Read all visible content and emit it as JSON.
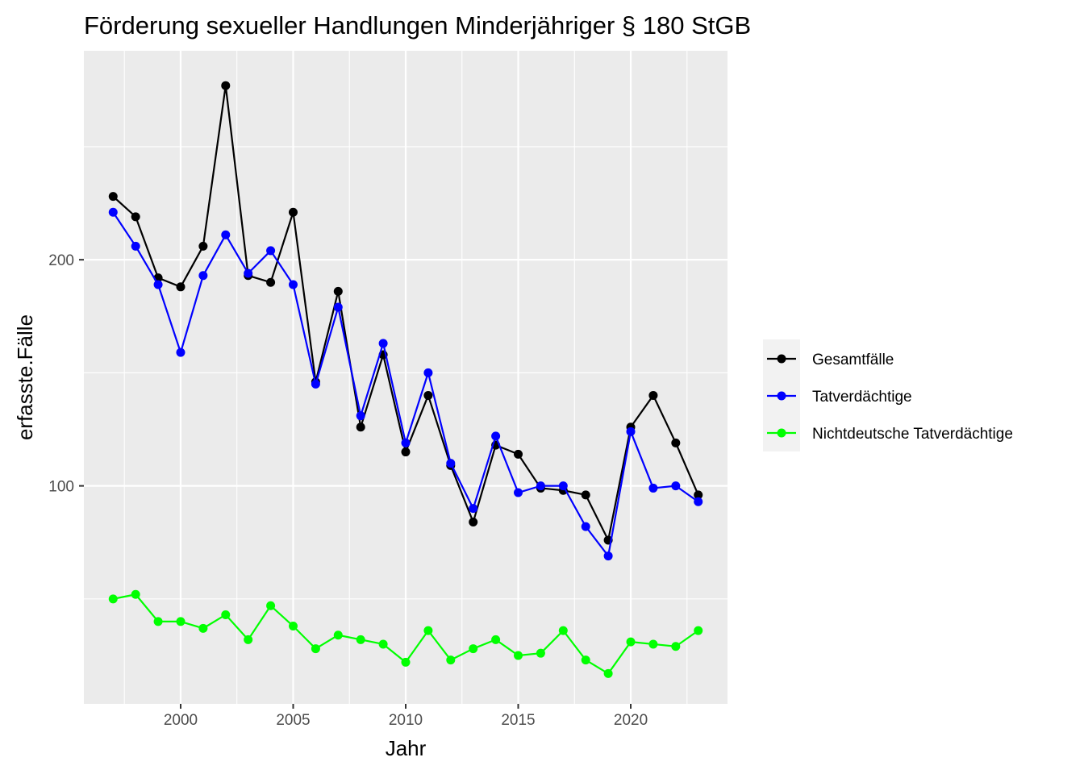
{
  "chart_data": {
    "type": "line",
    "title": "Förderung sexueller Handlungen Minderjähriger § 180 StGB",
    "xlabel": "Jahr",
    "ylabel": "erfasste.Fälle",
    "x": [
      1997,
      1998,
      1999,
      2000,
      2001,
      2002,
      2003,
      2004,
      2005,
      2006,
      2007,
      2008,
      2009,
      2010,
      2011,
      2012,
      2013,
      2014,
      2015,
      2016,
      2017,
      2018,
      2019,
      2020,
      2021,
      2022,
      2023
    ],
    "xticks": [
      "2000",
      "2005",
      "2010",
      "2015",
      "2020"
    ],
    "yticks": [
      "100",
      "200"
    ],
    "xlim": [
      1995.7,
      2024.3
    ],
    "ylim": [
      3.6,
      292.4
    ],
    "grid": true,
    "legend_position": "right",
    "series": [
      {
        "name": "Gesamtfälle",
        "color": "#000000",
        "values": [
          228,
          219,
          192,
          188,
          206,
          277,
          193,
          190,
          221,
          146,
          186,
          126,
          158,
          115,
          140,
          109,
          84,
          118,
          114,
          99,
          98,
          96,
          76,
          126,
          140,
          119,
          96
        ]
      },
      {
        "name": "Tatverdächtige",
        "color": "#0000ff",
        "values": [
          221,
          206,
          189,
          159,
          193,
          211,
          194,
          204,
          189,
          145,
          179,
          131,
          163,
          119,
          150,
          110,
          90,
          122,
          97,
          100,
          100,
          82,
          69,
          124,
          99,
          100,
          93
        ]
      },
      {
        "name": "Nichtdeutsche Tatverdächtige",
        "color": "#00ff00",
        "values": [
          50,
          52,
          40,
          40,
          37,
          43,
          32,
          47,
          38,
          28,
          34,
          32,
          30,
          22,
          36,
          23,
          28,
          32,
          25,
          26,
          36,
          23,
          17,
          31,
          30,
          29,
          36
        ]
      }
    ]
  }
}
